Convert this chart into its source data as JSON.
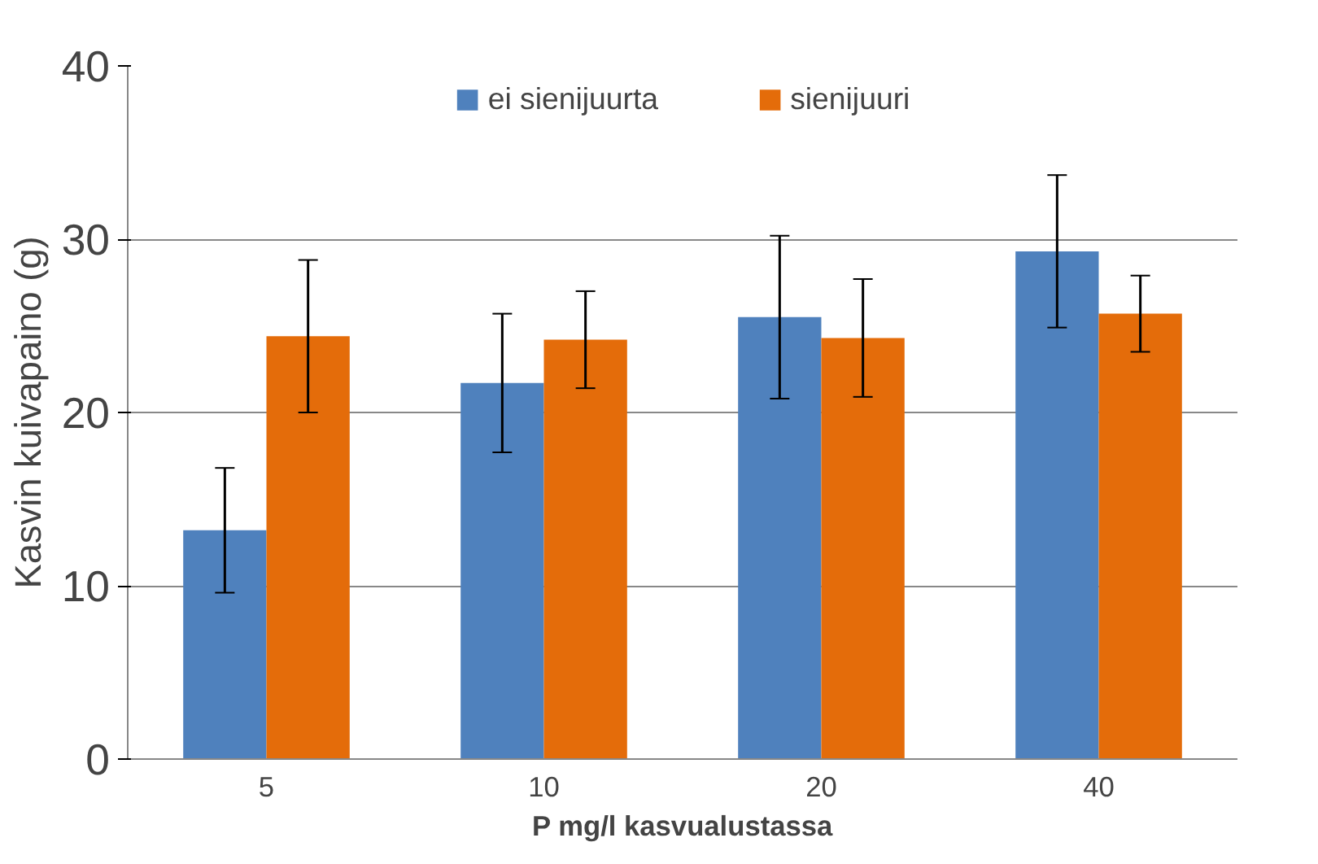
{
  "chart_data": {
    "type": "bar",
    "xlabel": "P mg/l kasvualustassa",
    "ylabel": "Kasvin kuivapaino (g)",
    "categories": [
      "5",
      "10",
      "20",
      "40"
    ],
    "series": [
      {
        "name": "ei sienijuurta",
        "color": "#4f81bd",
        "values": [
          13.2,
          21.7,
          25.5,
          29.3
        ],
        "errors": [
          3.6,
          4.0,
          4.7,
          4.4
        ]
      },
      {
        "name": "sienijuuri",
        "color": "#e46c0a",
        "values": [
          24.4,
          24.2,
          24.3,
          25.7
        ],
        "errors": [
          4.4,
          2.8,
          3.4,
          2.2
        ]
      }
    ],
    "ylim": [
      0,
      40
    ],
    "yticks": [
      0,
      10,
      20,
      30,
      40
    ],
    "grid": "y",
    "legend": "top"
  }
}
